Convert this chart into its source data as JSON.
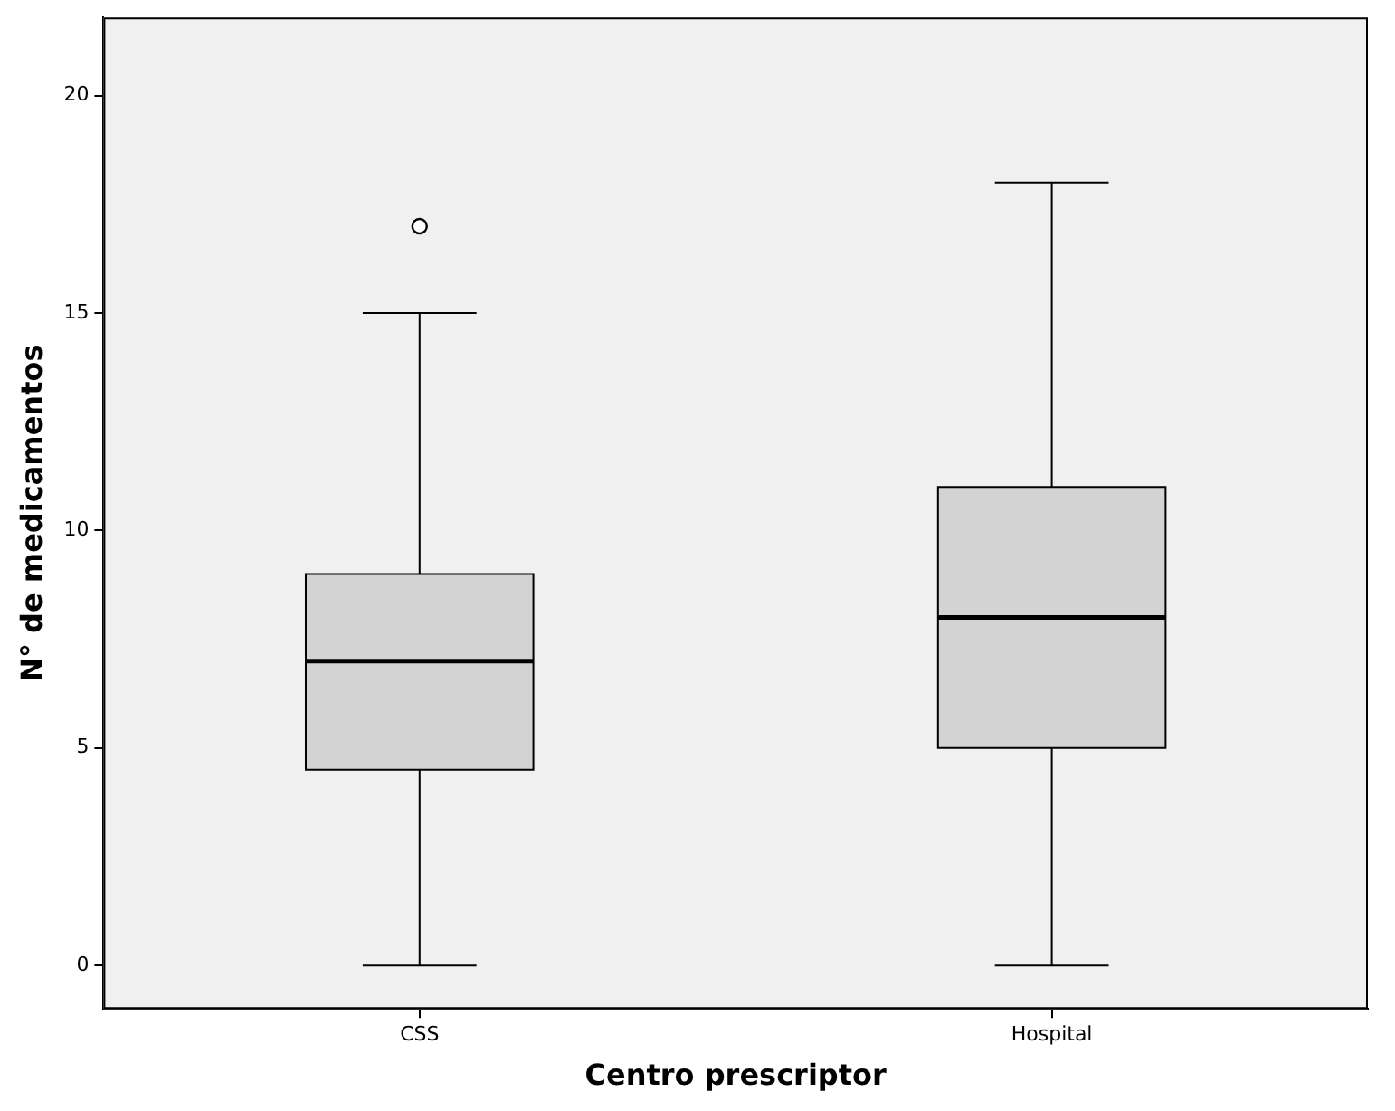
{
  "chart_data": {
    "type": "box",
    "xlabel": "Centro prescriptor",
    "ylabel": "N° de medicamentos",
    "categories": [
      "CSS",
      "Hospital"
    ],
    "boxes": [
      {
        "low": 0,
        "q1": 4.5,
        "median": 7,
        "q3": 9,
        "high": 15,
        "outliers": [
          17
        ]
      },
      {
        "low": 0,
        "q1": 5,
        "median": 8,
        "q3": 11,
        "high": 18
      }
    ],
    "colors": [
      "#d3d3d3",
      "#d3d3d3"
    ],
    "ylim": [
      -1,
      21.8
    ],
    "yticks": [
      0,
      5,
      10,
      15,
      20
    ],
    "grid": false,
    "legend": false
  }
}
